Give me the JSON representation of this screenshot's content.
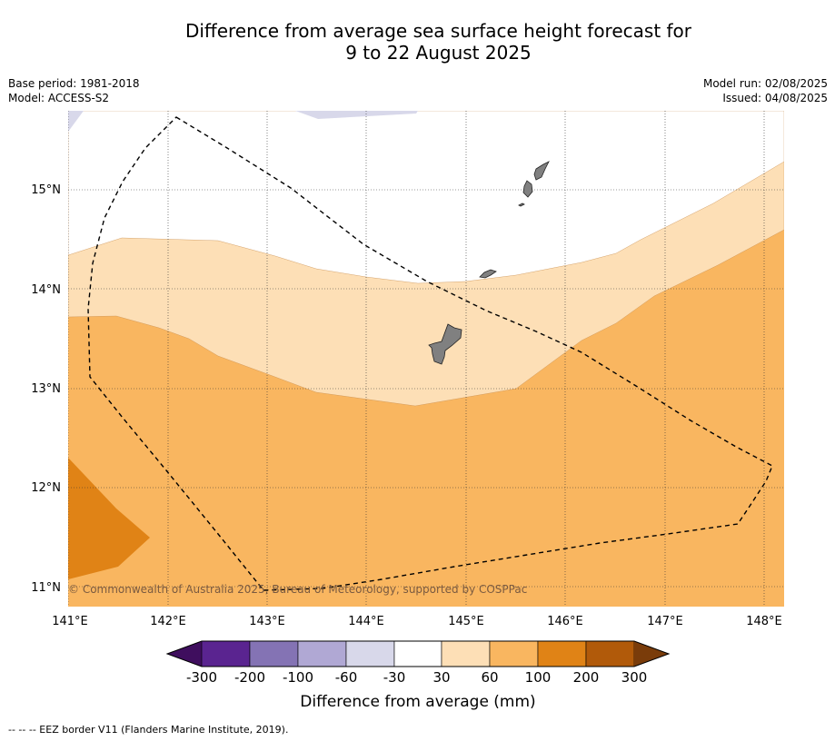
{
  "title_line1": "Difference from average sea surface height forecast for",
  "title_line2": "9 to 22 August 2025",
  "base_period": "Base period: 1981-2018",
  "model": "Model: ACCESS-S2",
  "model_run": "Model run: 02/08/2025",
  "issued": "Issued: 04/08/2025",
  "lon_labels": [
    "141°E",
    "142°E",
    "143°E",
    "144°E",
    "145°E",
    "146°E",
    "147°E",
    "148°E"
  ],
  "lat_labels": [
    "15°N",
    "14°N",
    "13°N",
    "12°N",
    "11°N"
  ],
  "copyright": "© Commonwealth of Australia 2025, Bureau of Meteorology, supported by COSPPac",
  "colorbar": {
    "labels": [
      "-300",
      "-200",
      "-100",
      "-60",
      "-30",
      "30",
      "60",
      "100",
      "200",
      "300"
    ],
    "colors": [
      "#3f0e5e",
      "#5a2490",
      "#8473b4",
      "#b0a8d4",
      "#d8d8ea",
      "#ffffff",
      "#fddfb6",
      "#f9b660",
      "#e08316",
      "#b15a0a",
      "#7a3c0a"
    ],
    "title": "Difference from average (mm)"
  },
  "footnote": "--  --  -- EEZ border V11 (Flanders Marine Institute, 2019).",
  "map_colors": {
    "white_band": "#ffffff",
    "band_30_60": "#fddfb6",
    "band_60_100": "#f9b660",
    "band_100_200": "#e08316",
    "band_neg30_neg60": "#d8d8ea",
    "land": "#808080"
  }
}
